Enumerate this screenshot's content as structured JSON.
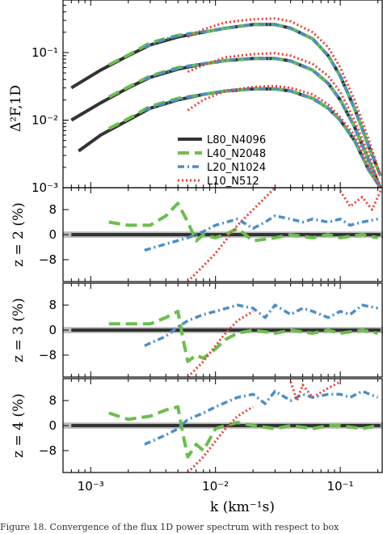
{
  "caption": "Figure 18. Convergence of the flux 1D power spectrum with respect to box",
  "xlabel_var": "k",
  "xlabel_unit": "(km⁻¹s)",
  "colors": {
    "L80_N4096": "#333333",
    "L40_N2048": "#6abf4b",
    "L20_N1024": "#4a90c8",
    "L10_N512": "#e8403c",
    "band": "#bbbbbb"
  },
  "chart_data": [
    {
      "type": "line",
      "panel": "power",
      "xscale": "log",
      "yscale": "log",
      "xlim": [
        0.0006,
        0.22
      ],
      "ylim": [
        0.001,
        0.6
      ],
      "ylabel": "Δ²F,1D",
      "yticks": [
        "10⁻³",
        "10⁻²",
        "10⁻¹"
      ],
      "xticks": [
        "10⁻³",
        "10⁻²",
        "10⁻¹"
      ],
      "legend_position": "lower-left",
      "series": [
        {
          "name": "L80_N4096",
          "style": "solid",
          "groups": [
            {
              "x": [
                0.0007,
                0.0012,
                0.002,
                0.003,
                0.005,
                0.008,
                0.012,
                0.02,
                0.03,
                0.04,
                0.06,
                0.08,
                0.1,
                0.13,
                0.17,
                0.21
              ],
              "y": [
                0.03,
                0.055,
                0.09,
                0.13,
                0.17,
                0.2,
                0.23,
                0.26,
                0.26,
                0.23,
                0.16,
                0.09,
                0.045,
                0.015,
                0.004,
                0.0015
              ]
            },
            {
              "x": [
                0.0007,
                0.0012,
                0.002,
                0.003,
                0.005,
                0.008,
                0.012,
                0.02,
                0.03,
                0.04,
                0.06,
                0.08,
                0.1,
                0.13,
                0.17,
                0.21
              ],
              "y": [
                0.01,
                0.018,
                0.03,
                0.043,
                0.057,
                0.068,
                0.076,
                0.082,
                0.082,
                0.075,
                0.055,
                0.035,
                0.02,
                0.008,
                0.0025,
                0.001
              ]
            },
            {
              "x": [
                0.0008,
                0.0012,
                0.002,
                0.003,
                0.005,
                0.008,
                0.012,
                0.02,
                0.03,
                0.04,
                0.06,
                0.08,
                0.1,
                0.13,
                0.17,
                0.21
              ],
              "y": [
                0.0035,
                0.006,
                0.01,
                0.015,
                0.02,
                0.024,
                0.027,
                0.029,
                0.029,
                0.027,
                0.021,
                0.015,
                0.01,
                0.005,
                0.0018,
                0.001
              ]
            }
          ]
        },
        {
          "name": "L40_N2048",
          "style": "dashed",
          "groups": [
            {
              "x": [
                0.0014,
                0.002,
                0.003,
                0.005,
                0.008,
                0.012,
                0.02,
                0.03,
                0.04,
                0.06,
                0.08,
                0.1,
                0.13,
                0.17,
                0.21
              ],
              "y": [
                0.066,
                0.092,
                0.14,
                0.18,
                0.2,
                0.23,
                0.26,
                0.26,
                0.23,
                0.16,
                0.09,
                0.045,
                0.015,
                0.004,
                0.0015
              ]
            },
            {
              "x": [
                0.0014,
                0.002,
                0.003,
                0.005,
                0.008,
                0.012,
                0.02,
                0.03,
                0.04,
                0.06,
                0.08,
                0.1,
                0.13,
                0.17,
                0.21
              ],
              "y": [
                0.022,
                0.031,
                0.045,
                0.06,
                0.068,
                0.076,
                0.082,
                0.082,
                0.075,
                0.055,
                0.035,
                0.02,
                0.008,
                0.0025,
                0.001
              ]
            },
            {
              "x": [
                0.0014,
                0.002,
                0.003,
                0.005,
                0.008,
                0.012,
                0.02,
                0.03,
                0.04,
                0.06,
                0.08,
                0.1,
                0.13,
                0.17,
                0.21
              ],
              "y": [
                0.0075,
                0.0105,
                0.016,
                0.021,
                0.024,
                0.027,
                0.029,
                0.029,
                0.027,
                0.021,
                0.015,
                0.01,
                0.005,
                0.0018,
                0.001
              ]
            }
          ]
        },
        {
          "name": "L20_N1024",
          "style": "dashdot",
          "groups": [
            {
              "x": [
                0.0027,
                0.004,
                0.006,
                0.009,
                0.014,
                0.02,
                0.03,
                0.04,
                0.06,
                0.08,
                0.1,
                0.13,
                0.17,
                0.21
              ],
              "y": [
                0.12,
                0.16,
                0.19,
                0.21,
                0.24,
                0.26,
                0.26,
                0.23,
                0.16,
                0.09,
                0.045,
                0.015,
                0.004,
                0.0015
              ]
            },
            {
              "x": [
                0.0027,
                0.004,
                0.006,
                0.009,
                0.014,
                0.02,
                0.03,
                0.04,
                0.06,
                0.08,
                0.1,
                0.13,
                0.17,
                0.21
              ],
              "y": [
                0.04,
                0.052,
                0.063,
                0.071,
                0.079,
                0.082,
                0.082,
                0.075,
                0.055,
                0.035,
                0.02,
                0.008,
                0.0025,
                0.001
              ]
            },
            {
              "x": [
                0.0027,
                0.004,
                0.006,
                0.009,
                0.014,
                0.02,
                0.03,
                0.04,
                0.06,
                0.08,
                0.1,
                0.13,
                0.17,
                0.21
              ],
              "y": [
                0.014,
                0.018,
                0.022,
                0.025,
                0.028,
                0.029,
                0.029,
                0.027,
                0.021,
                0.015,
                0.01,
                0.005,
                0.0018,
                0.001
              ]
            }
          ]
        },
        {
          "name": "L10_N512",
          "style": "dotted",
          "groups": [
            {
              "x": [
                0.006,
                0.008,
                0.012,
                0.02,
                0.03,
                0.04,
                0.06,
                0.08,
                0.1,
                0.13,
                0.17,
                0.21
              ],
              "y": [
                0.17,
                0.22,
                0.28,
                0.31,
                0.32,
                0.29,
                0.2,
                0.12,
                0.06,
                0.02,
                0.005,
                0.0015
              ]
            },
            {
              "x": [
                0.006,
                0.008,
                0.012,
                0.02,
                0.03,
                0.04,
                0.06,
                0.08,
                0.1,
                0.13,
                0.17,
                0.21
              ],
              "y": [
                0.052,
                0.065,
                0.085,
                0.095,
                0.098,
                0.09,
                0.068,
                0.045,
                0.026,
                0.01,
                0.003,
                0.001
              ]
            },
            {
              "x": [
                0.006,
                0.008,
                0.012,
                0.02,
                0.03,
                0.04,
                0.06,
                0.08,
                0.1,
                0.13,
                0.17,
                0.21
              ],
              "y": [
                0.014,
                0.02,
                0.027,
                0.031,
                0.032,
                0.03,
                0.024,
                0.017,
                0.011,
                0.006,
                0.002,
                0.001
              ]
            }
          ]
        }
      ]
    },
    {
      "type": "line",
      "panel": "residual",
      "ylabel": "z = 2 (%)",
      "xscale": "log",
      "xlim": [
        0.0006,
        0.22
      ],
      "ylim": [
        -15,
        15
      ],
      "yticks": [
        "8",
        "0",
        "−8"
      ],
      "band": [
        -1,
        1
      ],
      "series": [
        {
          "name": "L80_N4096",
          "style": "solid",
          "x": [
            0.0007,
            0.21
          ],
          "y": [
            0,
            0
          ]
        },
        {
          "name": "L40_N2048",
          "style": "dashed",
          "x": [
            0.0014,
            0.002,
            0.003,
            0.004,
            0.005,
            0.006,
            0.007,
            0.008,
            0.01,
            0.012,
            0.015,
            0.02,
            0.03,
            0.04,
            0.06,
            0.08,
            0.1,
            0.15,
            0.2
          ],
          "y": [
            4,
            3,
            3,
            6,
            10,
            4,
            -2,
            0,
            -1,
            0,
            2,
            -2,
            -1,
            0,
            -1,
            0,
            -1,
            0,
            -1
          ]
        },
        {
          "name": "L20_N1024",
          "style": "dashdot",
          "x": [
            0.0027,
            0.004,
            0.006,
            0.008,
            0.01,
            0.015,
            0.02,
            0.025,
            0.03,
            0.04,
            0.05,
            0.06,
            0.08,
            0.1,
            0.12,
            0.15,
            0.2
          ],
          "y": [
            -5,
            -3,
            -1,
            1,
            3,
            5,
            2,
            4,
            6,
            5,
            4,
            5,
            4,
            5,
            3,
            4,
            5
          ]
        },
        {
          "name": "L10_N512",
          "style": "dotted",
          "x": [
            0.006,
            0.008,
            0.01,
            0.012,
            0.015,
            0.02,
            0.03
          ],
          "y": [
            -15,
            -10,
            -6,
            -2,
            3,
            8,
            15
          ]
        },
        {
          "name": "L10_N512",
          "style": "dotted",
          "x": [
            0.1,
            0.12,
            0.15,
            0.18,
            0.21
          ],
          "y": [
            14,
            9,
            12,
            8,
            14
          ]
        }
      ]
    },
    {
      "type": "line",
      "panel": "residual",
      "ylabel": "z = 3 (%)",
      "xscale": "log",
      "xlim": [
        0.0006,
        0.22
      ],
      "ylim": [
        -15,
        15
      ],
      "yticks": [
        "8",
        "0",
        "−8"
      ],
      "band": [
        -1,
        1
      ],
      "series": [
        {
          "name": "L80_N4096",
          "style": "solid",
          "x": [
            0.0007,
            0.21
          ],
          "y": [
            0,
            0
          ]
        },
        {
          "name": "L40_N2048",
          "style": "dashed",
          "x": [
            0.0014,
            0.002,
            0.003,
            0.004,
            0.005,
            0.0055,
            0.006,
            0.007,
            0.008,
            0.01,
            0.012,
            0.015,
            0.02,
            0.03,
            0.04,
            0.06,
            0.08,
            0.1,
            0.15,
            0.2
          ],
          "y": [
            2,
            2,
            2,
            4,
            6,
            -3,
            -10,
            -8,
            -9,
            -6,
            -3,
            -1,
            0,
            -1,
            0,
            -1,
            0,
            -1,
            0,
            -1
          ]
        },
        {
          "name": "L20_N1024",
          "style": "dashdot",
          "x": [
            0.0027,
            0.004,
            0.005,
            0.006,
            0.008,
            0.01,
            0.015,
            0.02,
            0.025,
            0.03,
            0.04,
            0.05,
            0.06,
            0.08,
            0.1,
            0.12,
            0.15,
            0.2
          ],
          "y": [
            -5,
            -2,
            1,
            3,
            5,
            6,
            8,
            7,
            4,
            8,
            5,
            7,
            6,
            4,
            6,
            5,
            8,
            7
          ]
        },
        {
          "name": "L10_N512",
          "style": "dotted",
          "x": [
            0.006,
            0.008,
            0.01,
            0.012,
            0.015,
            0.02
          ],
          "y": [
            -15,
            -10,
            -5,
            -1,
            3,
            6
          ]
        }
      ]
    },
    {
      "type": "line",
      "panel": "residual",
      "ylabel": "z = 4 (%)",
      "xscale": "log",
      "xlim": [
        0.0006,
        0.22
      ],
      "ylim": [
        -15,
        15
      ],
      "yticks": [
        "8",
        "0",
        "−8"
      ],
      "band": [
        -1,
        1
      ],
      "series": [
        {
          "name": "L80_N4096",
          "style": "solid",
          "x": [
            0.0007,
            0.21
          ],
          "y": [
            0,
            0
          ]
        },
        {
          "name": "L40_N2048",
          "style": "dashed",
          "x": [
            0.0014,
            0.002,
            0.003,
            0.004,
            0.005,
            0.0055,
            0.006,
            0.007,
            0.008,
            0.01,
            0.012,
            0.015,
            0.02,
            0.03,
            0.04,
            0.06,
            0.08,
            0.1,
            0.15,
            0.2
          ],
          "y": [
            4,
            2,
            3,
            5,
            6,
            -3,
            -10,
            -6,
            -8,
            -1,
            0,
            1,
            0,
            -1,
            0,
            -1,
            0,
            0,
            -1,
            0
          ]
        },
        {
          "name": "L20_N1024",
          "style": "dashdot",
          "x": [
            0.0027,
            0.004,
            0.005,
            0.006,
            0.008,
            0.01,
            0.015,
            0.02,
            0.025,
            0.03,
            0.04,
            0.05,
            0.06,
            0.08,
            0.1,
            0.12,
            0.15,
            0.2
          ],
          "y": [
            -6,
            -3,
            -1,
            2,
            4,
            6,
            9,
            10,
            7,
            11,
            8,
            10,
            9,
            10,
            10,
            9,
            11,
            9
          ]
        },
        {
          "name": "L10_N512",
          "style": "dotted",
          "x": [
            0.006,
            0.008,
            0.01,
            0.012,
            0.015,
            0.02
          ],
          "y": [
            -15,
            -10,
            -5,
            -1,
            3,
            6
          ]
        },
        {
          "name": "L10_N512",
          "style": "dotted",
          "x": [
            0.04,
            0.045,
            0.05,
            0.06,
            0.08,
            0.1
          ],
          "y": [
            14,
            8,
            13,
            9,
            12,
            14
          ]
        }
      ]
    }
  ]
}
